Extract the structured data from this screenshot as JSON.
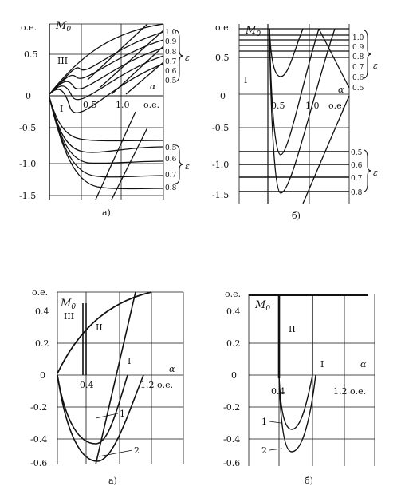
{
  "panels": [
    {
      "id": "tl",
      "caption": "а)",
      "unit": "о.е.",
      "m0": "M",
      "m0_sub": "0",
      "yticks": [
        "0.5",
        "0",
        "-0.5",
        "-1.0",
        "-1.5"
      ],
      "xticks": [
        "0.5",
        "1.0",
        "о.е."
      ],
      "region_labels": [
        "III",
        "I"
      ],
      "alpha": "α",
      "eps": "ε",
      "eps_upper": [
        "1.0",
        "0.9",
        "0.8",
        "0.7",
        "0.6",
        "0.5"
      ],
      "eps_lower": [
        "0.5",
        "0.6",
        "0.7",
        "0.8"
      ]
    },
    {
      "id": "tr",
      "caption": "б)",
      "unit": "о.е.",
      "m0": "M",
      "m0_sub": "0",
      "yticks": [
        "0.5",
        "0",
        "-0.5",
        "-1.0",
        "-1.5"
      ],
      "xticks": [
        "0.5",
        "1.0",
        "о.е."
      ],
      "region_labels": [
        "I"
      ],
      "alpha": "α",
      "eps": "ε",
      "eps_upper": [
        "1.0",
        "0.9",
        "0.8",
        "0.7",
        "0.6",
        "0.5"
      ],
      "eps_lower": [
        "0.5",
        "0.6",
        "0.7",
        "0.8"
      ]
    },
    {
      "id": "bl",
      "caption": "а)",
      "unit": "о.е.",
      "m0": "M",
      "m0_sub": "0",
      "yticks": [
        "0.4",
        "0.2",
        "0",
        "-0.2",
        "-0.4",
        "-0.6"
      ],
      "xticks": [
        "0.4",
        "1.2 о.е."
      ],
      "region_labels": [
        "III",
        "II",
        "I"
      ],
      "alpha": "α",
      "curve_labels": [
        "1",
        "2"
      ]
    },
    {
      "id": "br",
      "caption": "б)",
      "unit": "о.е.",
      "m0": "M",
      "m0_sub": "0",
      "yticks": [
        "0.4",
        "0.2",
        "0",
        "-0.2",
        "-0.4",
        "-0.6"
      ],
      "xticks": [
        "0.4",
        "1.2 о.е."
      ],
      "region_labels": [
        "II",
        "I"
      ],
      "alpha": "α",
      "curve_labels": [
        "1",
        "2"
      ]
    }
  ]
}
